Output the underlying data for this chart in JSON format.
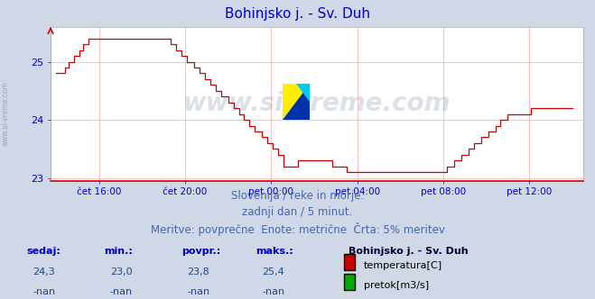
{
  "title": "Bohinjsko j. - Sv. Duh",
  "title_color": "#0000cc",
  "bg_color": "#d0d8e8",
  "plot_bg_color": "#ffffff",
  "grid_color": "#ffaaaa",
  "line_color": "#cc0000",
  "xaxis_color": "#0000cc",
  "yaxis_color": "#0000aa",
  "ylim": [
    22.95,
    25.6
  ],
  "yticks": [
    23,
    24,
    25
  ],
  "title_fontsize": 11,
  "watermark_text": "www.si-vreme.com",
  "watermark_color": "#1a3a6a",
  "watermark_alpha": 0.15,
  "subtitle_lines": [
    "Slovenija / reke in morje.",
    "zadnji dan / 5 minut.",
    "Meritve: povprečne  Enote: metrične  Črta: 5% meritev"
  ],
  "subtitle_color": "#4466aa",
  "subtitle_fontsize": 8.5,
  "footer_labels": [
    "sedaj:",
    "min.:",
    "povpr.:",
    "maks.:"
  ],
  "footer_values_temp": [
    "24,3",
    "23,0",
    "23,8",
    "25,4"
  ],
  "footer_values_flow": [
    "-nan",
    "-nan",
    "-nan",
    "-nan"
  ],
  "footer_station": "Bohinjsko j. - Sv. Duh",
  "footer_legend": [
    "temperatura[C]",
    "pretok[m3/s]"
  ],
  "footer_legend_colors": [
    "#cc0000",
    "#00aa00"
  ],
  "footer_label_color": "#0000bb",
  "footer_value_color": "#224488",
  "footer_station_color": "#000033",
  "xtick_labels": [
    "čet 16:00",
    "čet 20:00",
    "pet 00:00",
    "pet 04:00",
    "pet 08:00",
    "pet 12:00"
  ],
  "n_points": 289,
  "left_label": "www.si-vreme.com",
  "left_label_color": "#8899bb"
}
